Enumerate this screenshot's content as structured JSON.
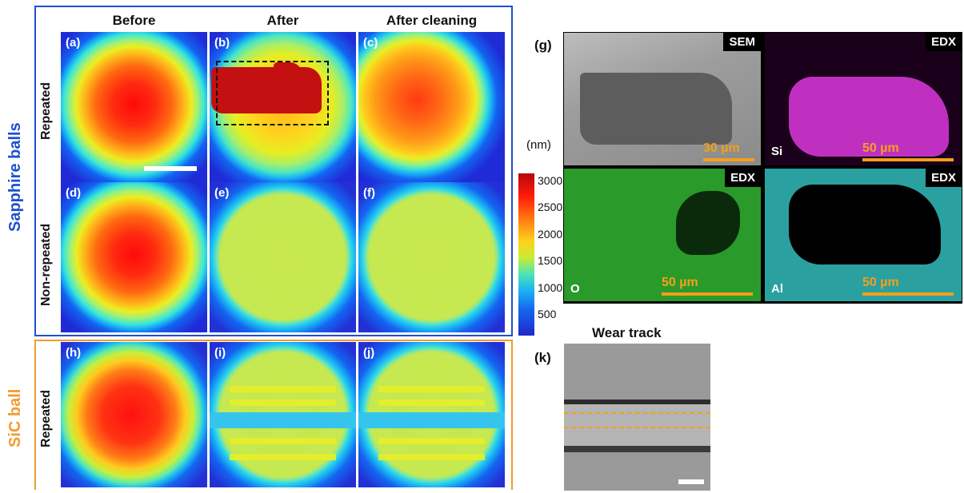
{
  "columns": [
    "Before",
    "After",
    "After cleaning"
  ],
  "groups": {
    "sapphire": "Sapphire balls",
    "sic": "SiC ball"
  },
  "rows": {
    "repeated": "Repeated",
    "non_repeated": "Non-repeated",
    "sic_repeated": "Repeated"
  },
  "panel_labels": [
    "(a)",
    "(b)",
    "(c)",
    "(d)",
    "(e)",
    "(f)",
    "(h)",
    "(i)",
    "(j)"
  ],
  "colorbar": {
    "unit": "(nm)",
    "ticks": [
      "3000",
      "2500",
      "2000",
      "1500",
      "1000",
      "500"
    ]
  },
  "g": {
    "label": "(g)",
    "tiles": [
      {
        "tag": "SEM",
        "element": "",
        "scale": "30 µm"
      },
      {
        "tag": "EDX",
        "element": "Si",
        "scale": "50 µm"
      },
      {
        "tag": "EDX",
        "element": "O",
        "scale": "50 µm"
      },
      {
        "tag": "EDX",
        "element": "Al",
        "scale": "50 µm"
      }
    ]
  },
  "k": {
    "label": "(k)",
    "title": "Wear track"
  },
  "colors": {
    "sapphire_frame": "#1f4fd1",
    "sic_frame": "#f29b2f",
    "scale_text": "#f3a01a"
  }
}
